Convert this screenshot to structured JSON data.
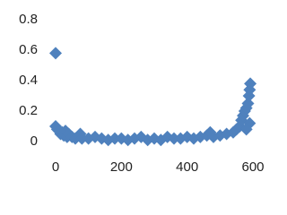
{
  "chart_data": {
    "type": "scatter",
    "color": "#4f81bd",
    "x": [
      0,
      0,
      5,
      10,
      15,
      20,
      25,
      30,
      35,
      40,
      50,
      60,
      75,
      80,
      100,
      120,
      140,
      160,
      180,
      200,
      220,
      240,
      260,
      280,
      300,
      320,
      340,
      360,
      380,
      400,
      420,
      440,
      460,
      470,
      480,
      500,
      520,
      540,
      550,
      560,
      565,
      570,
      575,
      580,
      585,
      588,
      590,
      592,
      590,
      580
    ],
    "y": [
      0.58,
      0.1,
      0.08,
      0.07,
      0.05,
      0.06,
      0.04,
      0.07,
      0.03,
      0.05,
      0.03,
      0.02,
      0.05,
      0.02,
      0.02,
      0.03,
      0.02,
      0.01,
      0.02,
      0.02,
      0.01,
      0.02,
      0.03,
      0.01,
      0.02,
      0.01,
      0.03,
      0.02,
      0.02,
      0.03,
      0.02,
      0.03,
      0.04,
      0.06,
      0.03,
      0.04,
      0.05,
      0.06,
      0.08,
      0.1,
      0.14,
      0.17,
      0.2,
      0.22,
      0.25,
      0.3,
      0.34,
      0.38,
      0.12,
      0.08
    ],
    "xlim": [
      0,
      600
    ],
    "xticks": [
      0,
      200,
      400,
      600
    ],
    "ylim": [
      0,
      0.8
    ],
    "yticks": [
      0,
      0.2,
      0.4,
      0.6,
      0.8
    ]
  }
}
